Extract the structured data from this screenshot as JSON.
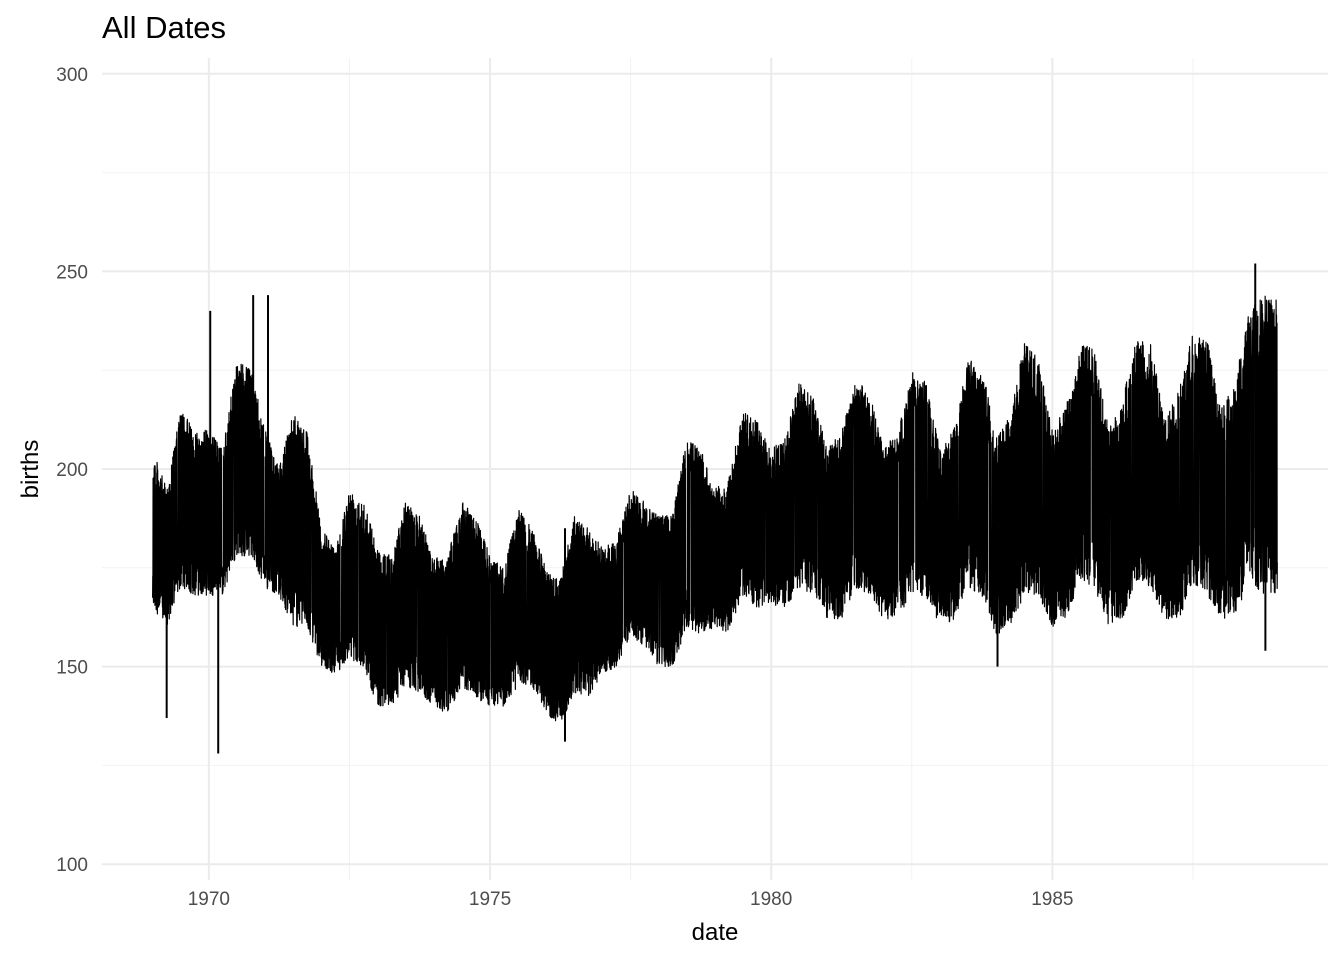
{
  "chart_data": {
    "type": "line",
    "title": "All Dates",
    "xlabel": "date",
    "ylabel": "births",
    "x_tick_labels": [
      "1970",
      "1975",
      "1980",
      "1985"
    ],
    "y_tick_labels": [
      "100",
      "150",
      "200",
      "250",
      "300"
    ],
    "xlim": [
      "1969-01-01",
      "1988-12-31"
    ],
    "ylim": [
      100,
      300
    ],
    "grid": true,
    "line_color": "#000000",
    "series": [
      {
        "resolution": "monthly",
        "x": [
          "1969-01",
          "1969-04",
          "1969-07",
          "1969-10",
          "1970-01",
          "1970-04",
          "1970-07",
          "1970-10",
          "1971-01",
          "1971-04",
          "1971-07",
          "1971-10",
          "1972-01",
          "1972-04",
          "1972-07",
          "1972-10",
          "1973-01",
          "1973-04",
          "1973-07",
          "1973-10",
          "1974-01",
          "1974-04",
          "1974-07",
          "1974-10",
          "1975-01",
          "1975-04",
          "1975-07",
          "1975-10",
          "1976-01",
          "1976-04",
          "1976-07",
          "1976-10",
          "1977-01",
          "1977-04",
          "1977-07",
          "1977-10",
          "1978-01",
          "1978-04",
          "1978-07",
          "1978-10",
          "1979-01",
          "1979-04",
          "1979-07",
          "1979-10",
          "1980-01",
          "1980-04",
          "1980-07",
          "1980-10",
          "1981-01",
          "1981-04",
          "1981-07",
          "1981-10",
          "1982-01",
          "1982-04",
          "1982-07",
          "1982-10",
          "1983-01",
          "1983-04",
          "1983-07",
          "1983-10",
          "1984-01",
          "1984-04",
          "1984-07",
          "1984-10",
          "1985-01",
          "1985-04",
          "1985-07",
          "1985-10",
          "1986-01",
          "1986-04",
          "1986-07",
          "1986-10",
          "1987-01",
          "1987-04",
          "1987-07",
          "1987-10",
          "1988-01",
          "1988-04",
          "1988-07",
          "1988-10"
        ],
        "upper": [
          205,
          195,
          215,
          210,
          210,
          205,
          228,
          225,
          210,
          200,
          215,
          210,
          185,
          180,
          195,
          193,
          180,
          178,
          192,
          188,
          178,
          178,
          192,
          188,
          178,
          175,
          190,
          185,
          175,
          172,
          188,
          185,
          180,
          182,
          195,
          192,
          188,
          190,
          208,
          205,
          195,
          198,
          215,
          212,
          205,
          208,
          222,
          218,
          205,
          210,
          222,
          220,
          205,
          210,
          225,
          222,
          205,
          210,
          228,
          226,
          208,
          214,
          232,
          228,
          210,
          216,
          232,
          230,
          210,
          218,
          233,
          232,
          212,
          220,
          235,
          233,
          215,
          222,
          240,
          244
        ],
        "lower": [
          165,
          160,
          170,
          168,
          168,
          168,
          178,
          178,
          170,
          168,
          160,
          160,
          150,
          148,
          152,
          150,
          140,
          140,
          145,
          143,
          140,
          138,
          145,
          142,
          140,
          140,
          145,
          145,
          138,
          135,
          143,
          142,
          148,
          150,
          158,
          155,
          150,
          150,
          160,
          158,
          160,
          158,
          168,
          165,
          165,
          165,
          170,
          168,
          162,
          162,
          170,
          168,
          162,
          162,
          168,
          168,
          160,
          162,
          170,
          168,
          158,
          160,
          168,
          168,
          160,
          162,
          172,
          170,
          160,
          162,
          172,
          170,
          162,
          162,
          170,
          168,
          162,
          162,
          172,
          168
        ]
      }
    ],
    "extreme_points": [
      {
        "x": "1969-04-01",
        "y": 137
      },
      {
        "x": "1970-03-01",
        "y": 128
      },
      {
        "x": "1970-01-10",
        "y": 240
      },
      {
        "x": "1970-10-15",
        "y": 244
      },
      {
        "x": "1971-01-20",
        "y": 244
      },
      {
        "x": "1976-05-01",
        "y": 131
      },
      {
        "x": "1984-01-10",
        "y": 150
      },
      {
        "x": "1988-08-10",
        "y": 252
      },
      {
        "x": "1988-10-15",
        "y": 154
      }
    ]
  }
}
